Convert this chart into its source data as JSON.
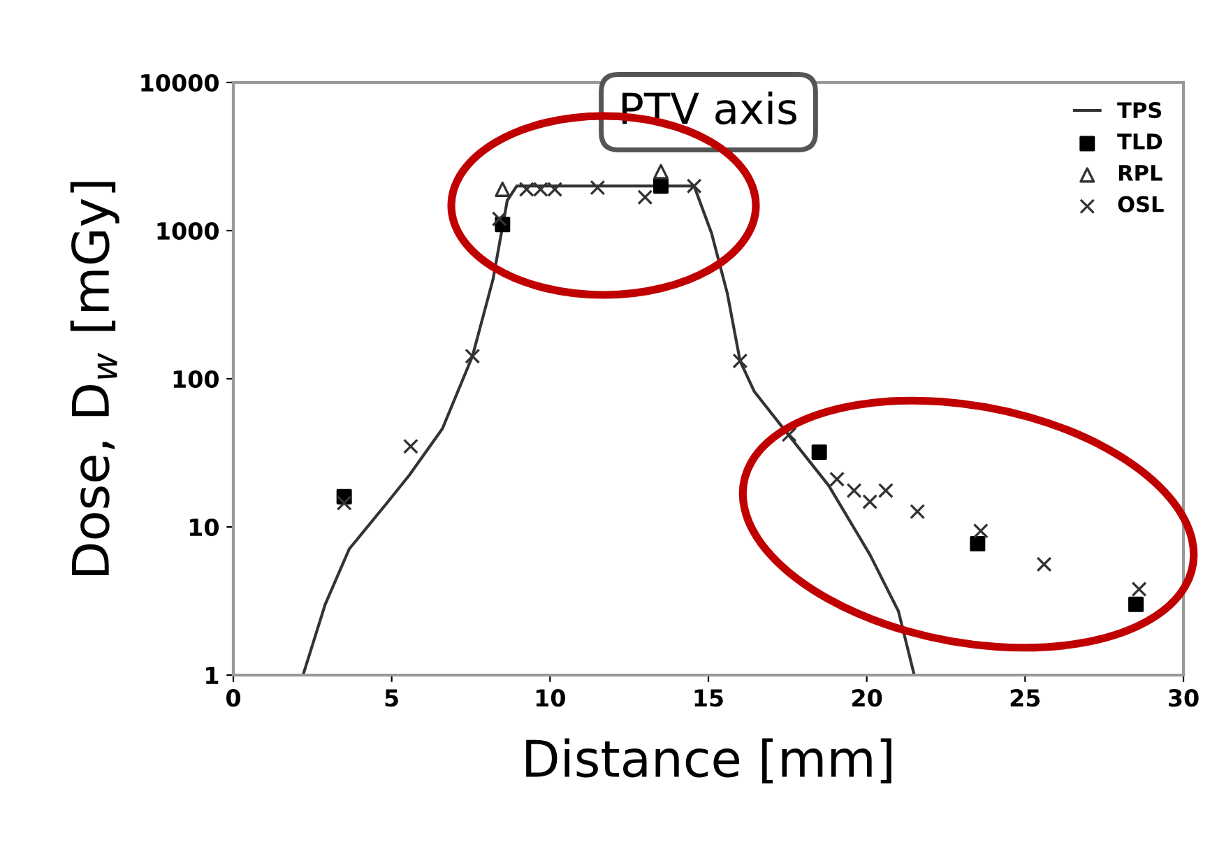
{
  "chart_data": {
    "type": "scatter",
    "title": "PTV axis",
    "xlabel": "Distance [mm]",
    "ylabel": "Dose, D$_{w}$ [mGy]",
    "xlim": [
      0,
      30
    ],
    "xticks": [
      0,
      5,
      10,
      15,
      20,
      25,
      30
    ],
    "ylim": [
      1,
      10000
    ],
    "yticks": [
      1,
      10,
      100,
      1000,
      10000
    ],
    "log": "y",
    "grid": false,
    "legend": "top right",
    "series": [
      {
        "name": "TPS",
        "type": "line",
        "color": "#333333",
        "marker": "none",
        "line_style": "solid",
        "x": [
          2.2,
          2.9,
          3.66,
          4.85,
          5.56,
          6.6,
          7.55,
          8.2,
          8.65,
          8.95,
          14.55,
          15.1,
          15.6,
          16.0,
          16.45,
          17.6,
          18.8,
          20.1,
          21.0,
          21.5
        ],
        "values": [
          1,
          3.0,
          7.1,
          14.5,
          22.4,
          46,
          142,
          470,
          1600,
          2000,
          2000,
          960,
          375,
          132,
          82,
          40,
          19,
          6.5,
          2.7,
          1
        ]
      },
      {
        "name": "TLD",
        "color": "#000000",
        "marker": "square",
        "x": [
          3.5,
          8.5,
          13.5,
          18.5,
          23.5,
          28.5
        ],
        "values": [
          16,
          1100,
          2000,
          32,
          7.7,
          3.0
        ]
      },
      {
        "name": "RPL",
        "color": "#333333",
        "marker": "triangle",
        "x": [
          8.5,
          13.5
        ],
        "values": [
          1900,
          2500
        ]
      },
      {
        "name": "OSL",
        "color": "#333333",
        "marker": "cross",
        "x": [
          3.5,
          5.6,
          7.55,
          8.4,
          9.26,
          9.7,
          10.15,
          11.5,
          13.0,
          14.55,
          16.0,
          17.55,
          19.06,
          19.6,
          20.1,
          20.6,
          21.6,
          23.6,
          25.6,
          28.6
        ],
        "values": [
          14.5,
          35,
          142,
          1200,
          1900,
          1900,
          1900,
          1950,
          1680,
          2000,
          132,
          42,
          21,
          17.6,
          14.8,
          17.6,
          12.7,
          9.4,
          5.6,
          3.8
        ]
      }
    ]
  }
}
